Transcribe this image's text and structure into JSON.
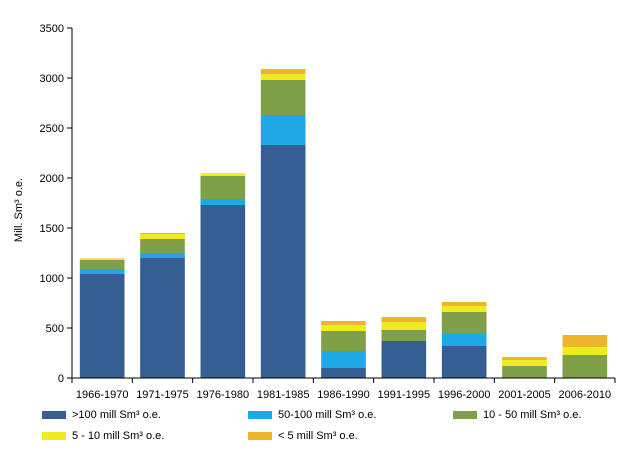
{
  "chart_data": {
    "type": "bar",
    "stacked": true,
    "title": "",
    "xlabel": "",
    "ylabel": "Mill. Sm³  o.e.",
    "ylim": [
      0,
      3500
    ],
    "yticks": [
      0,
      500,
      1000,
      1500,
      2000,
      2500,
      3000,
      3500
    ],
    "grid": false,
    "categories": [
      "1966-1970",
      "1971-1975",
      "1976-1980",
      "1981-1985",
      "1986-1990",
      "1991-1995",
      "1996-2000",
      "2001-2005",
      "2006-2010"
    ],
    "series": [
      {
        "name": ">100 mill Sm³ o.e.",
        "color": "#355e92",
        "values": [
          1040,
          1200,
          1730,
          2330,
          100,
          370,
          320,
          0,
          0
        ]
      },
      {
        "name": "50-100 mill Sm³ o.e.",
        "color": "#1ea9e6",
        "values": [
          50,
          50,
          60,
          300,
          170,
          0,
          120,
          0,
          0
        ]
      },
      {
        "name": "10 - 50 mill  Sm³ o.e.",
        "color": "#7f9f48",
        "values": [
          90,
          140,
          230,
          350,
          200,
          110,
          220,
          120,
          230
        ]
      },
      {
        "name": "5 - 10 mill Sm³ o.e.",
        "color": "#eeeb1e",
        "values": [
          10,
          50,
          20,
          60,
          60,
          80,
          60,
          60,
          80
        ]
      },
      {
        "name": "< 5 mill Sm³ o.e.",
        "color": "#ecb52a",
        "values": [
          5,
          10,
          5,
          50,
          40,
          50,
          40,
          30,
          120
        ]
      }
    ],
    "legend": {
      "position": "bottom"
    }
  }
}
